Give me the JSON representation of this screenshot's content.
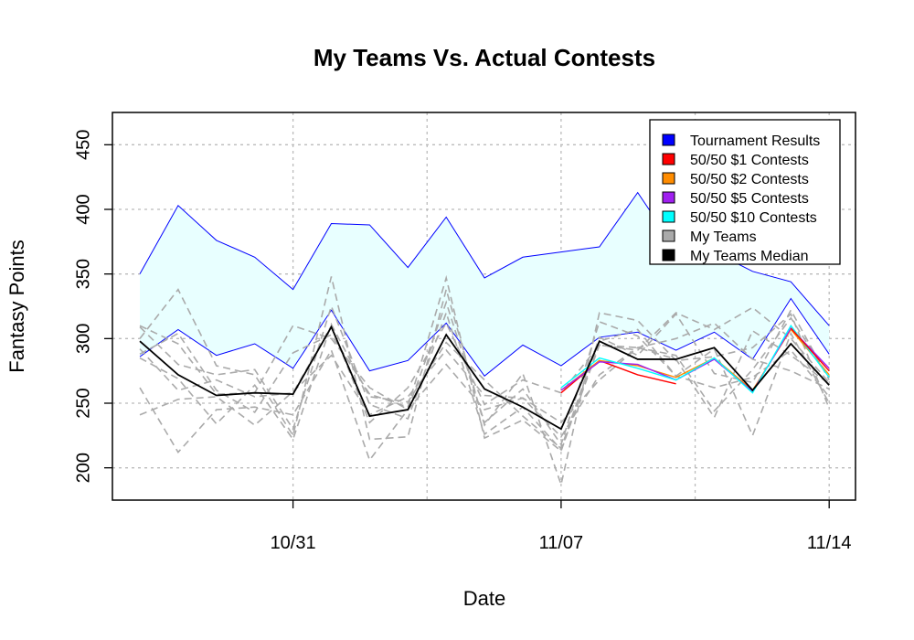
{
  "chart_data": {
    "type": "line",
    "title": "My Teams Vs. Actual Contests",
    "xlabel": "Date",
    "ylabel": "Fantasy Points",
    "x_dates": [
      "10/27",
      "10/28",
      "10/29",
      "10/30",
      "10/31",
      "11/01",
      "11/02",
      "11/03",
      "11/04",
      "11/05",
      "11/06",
      "11/07",
      "11/08",
      "11/09",
      "11/10",
      "11/11",
      "11/12",
      "11/13",
      "11/14"
    ],
    "x_tick_labels": [
      "10/31",
      "11/07",
      "11/14"
    ],
    "y_ticks": [
      200,
      250,
      300,
      350,
      400,
      450
    ],
    "ylim": [
      175,
      475
    ],
    "xlim": [
      "10/26 (approx)",
      "11/14 (approx)"
    ],
    "grid": true,
    "legend_position": "top-right",
    "legend": [
      {
        "label": "Tournament Results",
        "color": "#0000ff"
      },
      {
        "label": "50/50 $1 Contests",
        "color": "#ff0000"
      },
      {
        "label": "50/50 $2 Contests",
        "color": "#ff8c00"
      },
      {
        "label": "50/50 $5 Contests",
        "color": "#a020f0"
      },
      {
        "label": "50/50 $10 Contests",
        "color": "#00ffff"
      },
      {
        "label": "My Teams",
        "color": "#aaaaaa"
      },
      {
        "label": "My Teams Median",
        "color": "#000000"
      }
    ],
    "tournament_band": {
      "upper": [
        350,
        403,
        376,
        363,
        338,
        389,
        388,
        355,
        394,
        347,
        363,
        367,
        371,
        413,
        369,
        367,
        352,
        344,
        310
      ],
      "lower": [
        286,
        307,
        287,
        296,
        277,
        322,
        275,
        283,
        312,
        271,
        295,
        279,
        301,
        305,
        291,
        305,
        284,
        331,
        288
      ]
    },
    "contests": [
      {
        "name": "50/50 $1 Contests",
        "color": "#ff0000",
        "x_start_index": 11,
        "values": [
          258,
          283,
          272,
          265,
          null,
          null,
          null,
          null
        ]
      },
      {
        "name": "50/50 $2 Contests",
        "color": "#ff8c00",
        "x_start_index": 11,
        "values": [
          260,
          283,
          279,
          270,
          285,
          260,
          307,
          272
        ]
      },
      {
        "name": "50/50 $5 Contests",
        "color": "#a020f0",
        "x_start_index": 11,
        "values": [
          260,
          282,
          280,
          268,
          284,
          259,
          308,
          277
        ]
      },
      {
        "name": "50/50 $10 Contests",
        "color": "#00ffff",
        "x_start_index": 11,
        "values": [
          262,
          285,
          277,
          268,
          285,
          258,
          310,
          270
        ]
      },
      {
        "name": "50/50 $1 Contests (tail)",
        "color": "#ff0000",
        "x_start_index": 16,
        "values": [
          null,
          308,
          275
        ]
      }
    ],
    "my_teams": [
      [
        300,
        338,
        279,
        272,
        225,
        348,
        222,
        224,
        338,
        233,
        273,
        187,
        320,
        314,
        283,
        286,
        293,
        319,
        246
      ],
      [
        292,
        260,
        268,
        255,
        258,
        310,
        235,
        262,
        312,
        249,
        268,
        258,
        295,
        291,
        320,
        307,
        324,
        300,
        266
      ],
      [
        288,
        304,
        260,
        243,
        289,
        303,
        257,
        247,
        347,
        223,
        237,
        213,
        298,
        307,
        271,
        262,
        270,
        291,
        255
      ],
      [
        241,
        253,
        255,
        233,
        259,
        287,
        241,
        255,
        291,
        256,
        254,
        235,
        268,
        293,
        300,
        312,
        284,
        275,
        261
      ],
      [
        262,
        212,
        245,
        247,
        241,
        291,
        206,
        245,
        280,
        245,
        254,
        224,
        272,
        293,
        287,
        244,
        276,
        316,
        270
      ],
      [
        309,
        280,
        272,
        276,
        230,
        325,
        249,
        238,
        320,
        226,
        247,
        214,
        295,
        293,
        284,
        239,
        306,
        287,
        265
      ],
      [
        310,
        296,
        257,
        258,
        310,
        300,
        262,
        245,
        328,
        235,
        261,
        218,
        313,
        302,
        271,
        292,
        225,
        304,
        250
      ],
      [
        285,
        269,
        234,
        264,
        222,
        311,
        255,
        251,
        297,
        268,
        240,
        215,
        301,
        287,
        319,
        273,
        266,
        322,
        268
      ]
    ],
    "my_teams_median": [
      298,
      272,
      256,
      258,
      257,
      309,
      240,
      245,
      303,
      261,
      247,
      230,
      298,
      284,
      284,
      293,
      260,
      296,
      264
    ]
  }
}
